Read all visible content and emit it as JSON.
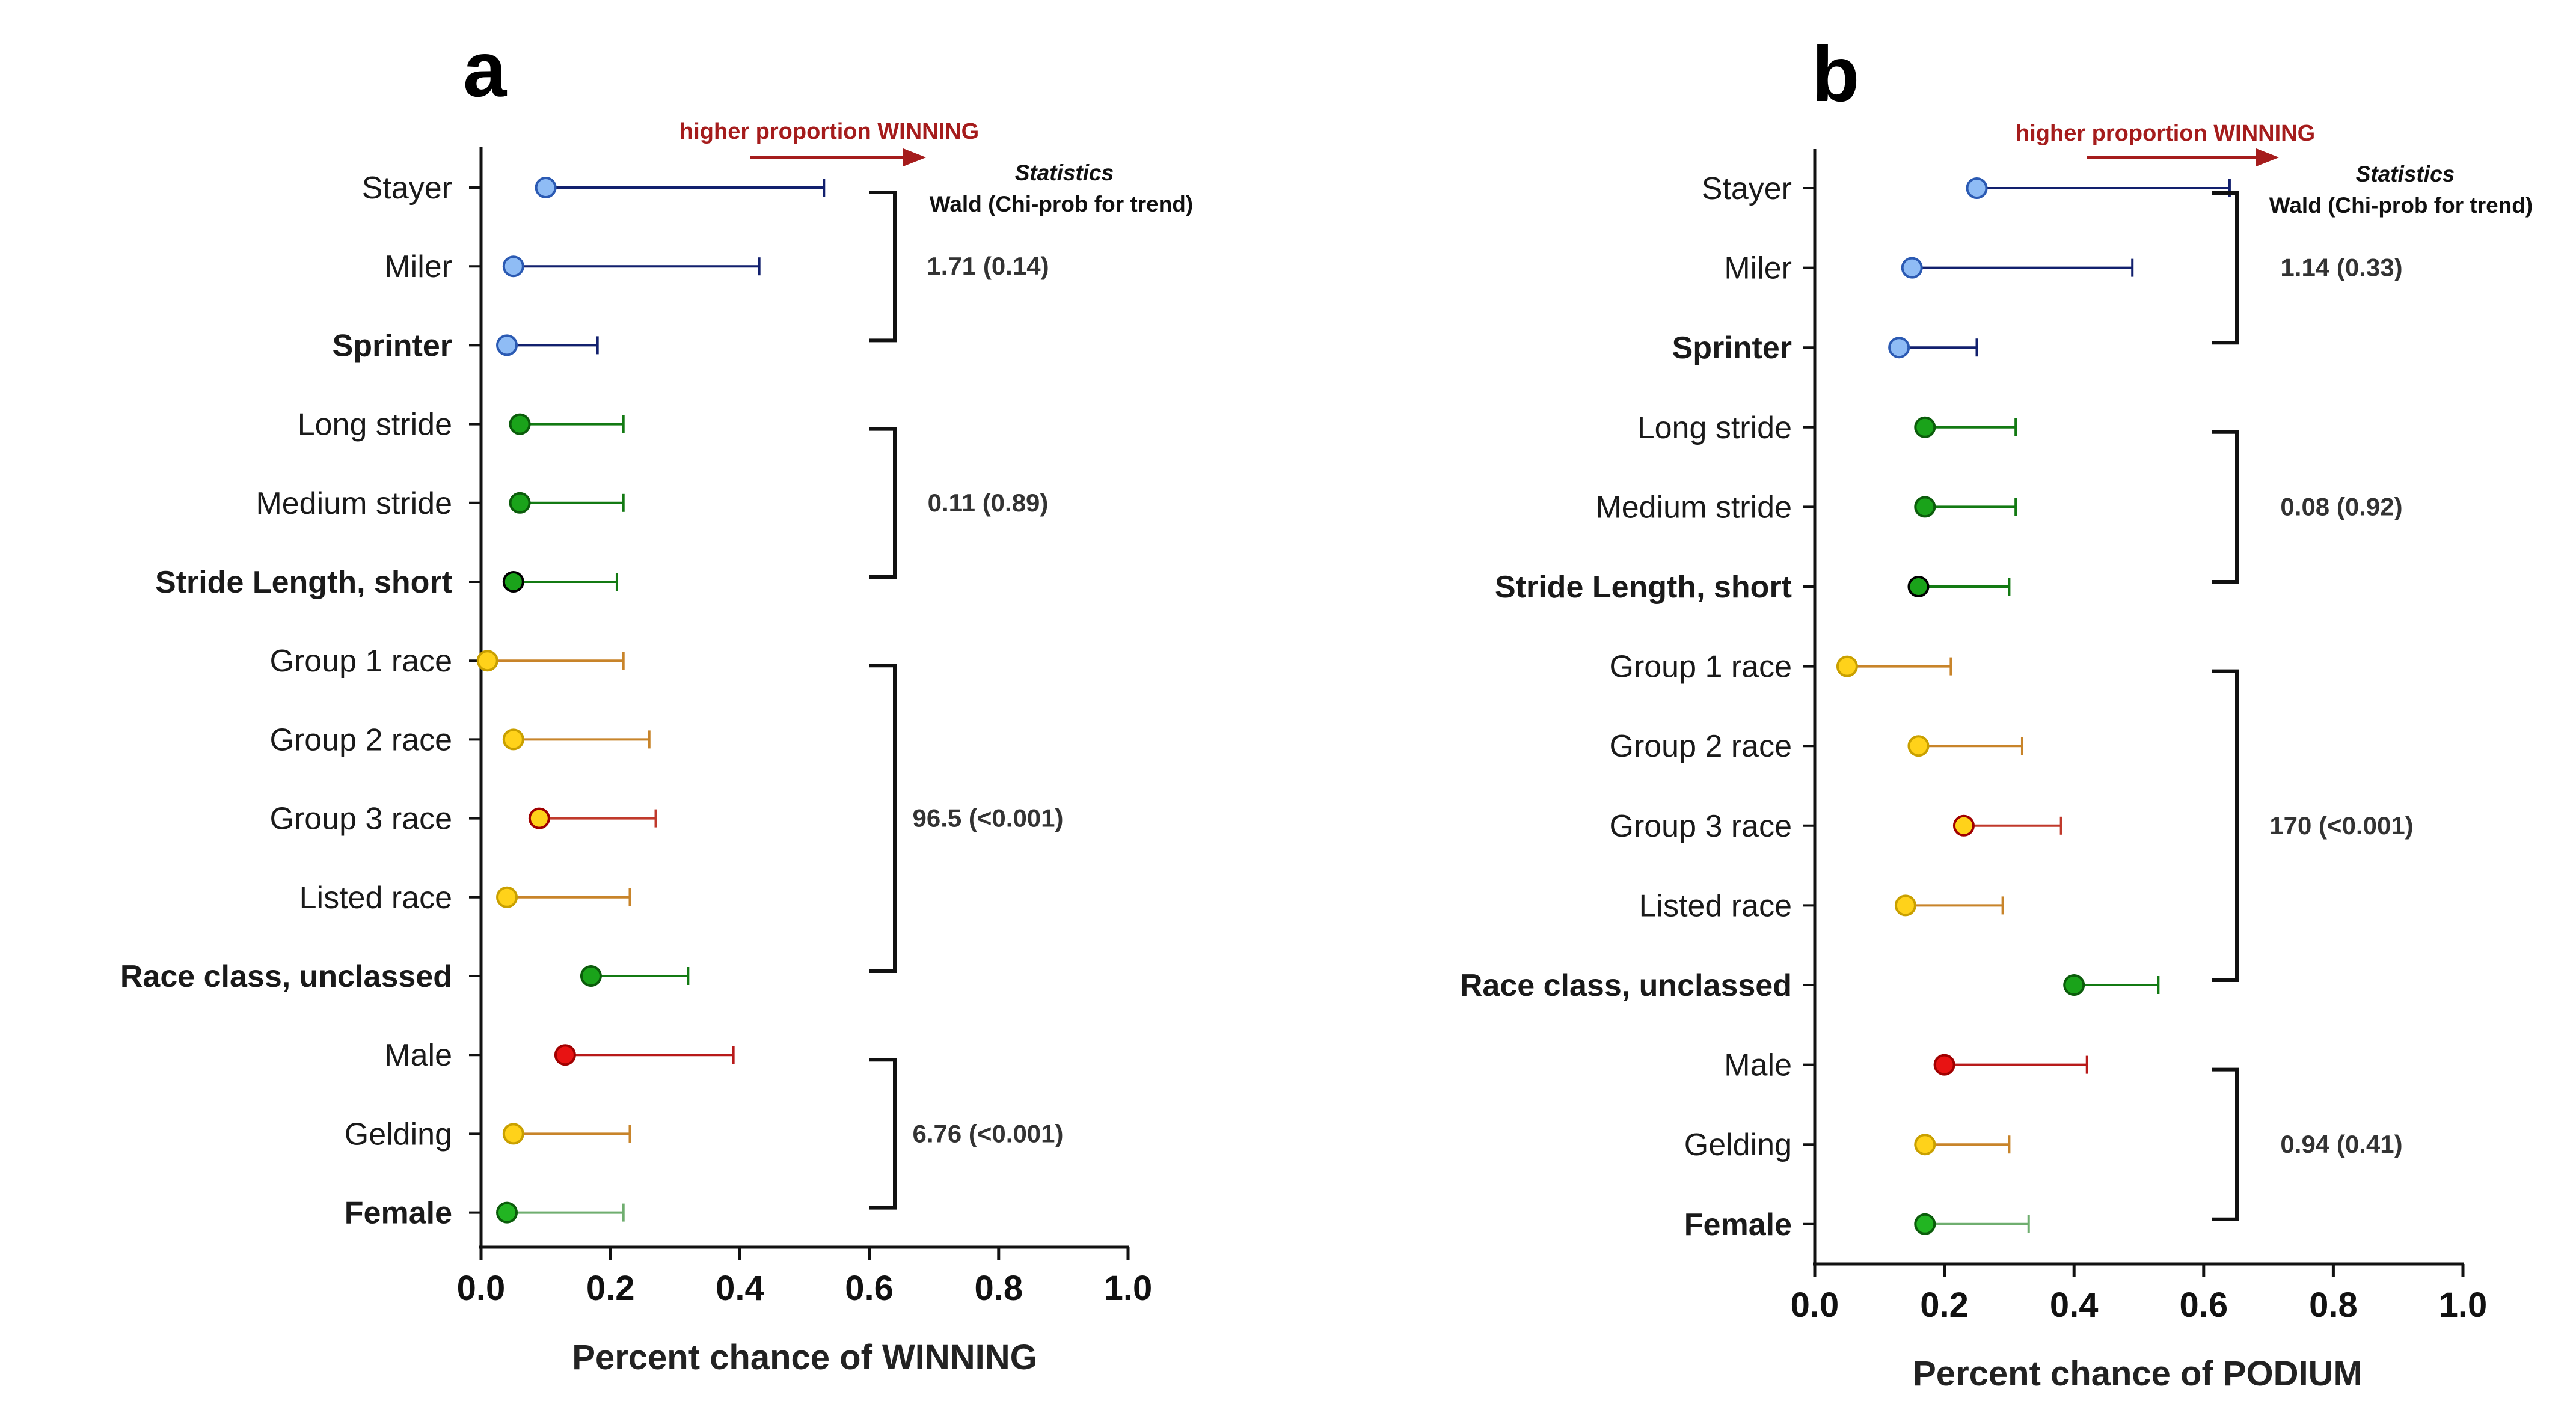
{
  "colors": {
    "blue_fill": "#8fbcf5",
    "blue_stroke": "#2b5ab3",
    "blue_line": "#12206e",
    "green_fill": "#1aa31a",
    "green_stroke": "#0b5c0b",
    "green_line": "#137a13",
    "female_fill": "#22b522",
    "female_line": "#6fae6f",
    "yellow_fill": "#ffd21a",
    "yellow_stroke": "#c9a000",
    "orange_line": "#c8842a",
    "group3_line": "#c0392b",
    "red_fill": "#e81313",
    "red_stroke": "#a00000",
    "red_line": "#b81a1a",
    "arrow": "#a51c1c"
  },
  "chart_data": [
    {
      "type": "scatter",
      "panel_label": "a",
      "xlabel": "Percent chance of WINNING",
      "xlim": [
        0,
        1.0
      ],
      "xticks": [
        "0.0",
        "0.2",
        "0.4",
        "0.6",
        "0.8",
        "1.0"
      ],
      "arrow_label": "higher proportion WINNING",
      "stats_header": "Statistics",
      "stats_subheader": "Wald (Chi-prob for trend)",
      "categories": [
        {
          "label": "Stayer",
          "bold": false,
          "value": 0.1,
          "upper": 0.53,
          "fill": "blue_fill",
          "stroke": "blue_stroke",
          "line": "blue_line"
        },
        {
          "label": "Miler",
          "bold": false,
          "value": 0.05,
          "upper": 0.43,
          "fill": "blue_fill",
          "stroke": "blue_stroke",
          "line": "blue_line"
        },
        {
          "label": "Sprinter",
          "bold": true,
          "value": 0.04,
          "upper": 0.18,
          "fill": "blue_fill",
          "stroke": "blue_stroke",
          "line": "blue_line"
        },
        {
          "label": "Long stride",
          "bold": false,
          "value": 0.06,
          "upper": 0.22,
          "fill": "green_fill",
          "stroke": "green_stroke",
          "line": "green_line"
        },
        {
          "label": "Medium stride",
          "bold": false,
          "value": 0.06,
          "upper": 0.22,
          "fill": "green_fill",
          "stroke": "green_stroke",
          "line": "green_line"
        },
        {
          "label": "Stride Length, short",
          "bold": true,
          "value": 0.05,
          "upper": 0.21,
          "fill": "green_fill",
          "stroke": "#000000",
          "line": "green_line"
        },
        {
          "label": "Group 1 race",
          "bold": false,
          "value": 0.01,
          "upper": 0.22,
          "fill": "yellow_fill",
          "stroke": "yellow_stroke",
          "line": "orange_line"
        },
        {
          "label": "Group 2 race",
          "bold": false,
          "value": 0.05,
          "upper": 0.26,
          "fill": "yellow_fill",
          "stroke": "yellow_stroke",
          "line": "orange_line"
        },
        {
          "label": "Group 3 race",
          "bold": false,
          "value": 0.09,
          "upper": 0.27,
          "fill": "yellow_fill",
          "stroke": "red_stroke",
          "line": "group3_line"
        },
        {
          "label": "Listed race",
          "bold": false,
          "value": 0.04,
          "upper": 0.23,
          "fill": "yellow_fill",
          "stroke": "yellow_stroke",
          "line": "orange_line"
        },
        {
          "label": "Race class, unclassed",
          "bold": true,
          "value": 0.17,
          "upper": 0.32,
          "fill": "green_fill",
          "stroke": "green_stroke",
          "line": "green_line"
        },
        {
          "label": "Male",
          "bold": false,
          "value": 0.13,
          "upper": 0.39,
          "fill": "red_fill",
          "stroke": "red_stroke",
          "line": "red_line"
        },
        {
          "label": "Gelding",
          "bold": false,
          "value": 0.05,
          "upper": 0.23,
          "fill": "yellow_fill",
          "stroke": "yellow_stroke",
          "line": "orange_line"
        },
        {
          "label": "Female",
          "bold": true,
          "value": 0.04,
          "upper": 0.22,
          "fill": "female_fill",
          "stroke": "green_stroke",
          "line": "female_line"
        }
      ],
      "groups": [
        {
          "from": 0,
          "to": 2,
          "stat": "1.71 (0.14)"
        },
        {
          "from": 3,
          "to": 5,
          "stat": "0.11 (0.89)"
        },
        {
          "from": 6,
          "to": 10,
          "stat": "96.5 (<0.001)"
        },
        {
          "from": 11,
          "to": 13,
          "stat": "6.76 (<0.001)"
        }
      ]
    },
    {
      "type": "scatter",
      "panel_label": "b",
      "xlabel": "Percent chance of PODIUM",
      "xlim": [
        0,
        1.0
      ],
      "xticks": [
        "0.0",
        "0.2",
        "0.4",
        "0.6",
        "0.8",
        "1.0"
      ],
      "arrow_label": "higher proportion WINNING",
      "stats_header": "Statistics",
      "stats_subheader": "Wald (Chi-prob for trend)",
      "categories": [
        {
          "label": "Stayer",
          "bold": false,
          "value": 0.25,
          "upper": 0.64,
          "fill": "blue_fill",
          "stroke": "blue_stroke",
          "line": "blue_line"
        },
        {
          "label": "Miler",
          "bold": false,
          "value": 0.15,
          "upper": 0.49,
          "fill": "blue_fill",
          "stroke": "blue_stroke",
          "line": "blue_line"
        },
        {
          "label": "Sprinter",
          "bold": true,
          "value": 0.13,
          "upper": 0.25,
          "fill": "blue_fill",
          "stroke": "blue_stroke",
          "line": "blue_line"
        },
        {
          "label": "Long stride",
          "bold": false,
          "value": 0.17,
          "upper": 0.31,
          "fill": "green_fill",
          "stroke": "green_stroke",
          "line": "green_line"
        },
        {
          "label": "Medium stride",
          "bold": false,
          "value": 0.17,
          "upper": 0.31,
          "fill": "green_fill",
          "stroke": "green_stroke",
          "line": "green_line"
        },
        {
          "label": "Stride Length, short",
          "bold": true,
          "value": 0.16,
          "upper": 0.3,
          "fill": "green_fill",
          "stroke": "#000000",
          "line": "green_line"
        },
        {
          "label": "Group 1 race",
          "bold": false,
          "value": 0.05,
          "upper": 0.21,
          "fill": "yellow_fill",
          "stroke": "yellow_stroke",
          "line": "orange_line"
        },
        {
          "label": "Group 2 race",
          "bold": false,
          "value": 0.16,
          "upper": 0.32,
          "fill": "yellow_fill",
          "stroke": "yellow_stroke",
          "line": "orange_line"
        },
        {
          "label": "Group 3 race",
          "bold": false,
          "value": 0.23,
          "upper": 0.38,
          "fill": "yellow_fill",
          "stroke": "red_stroke",
          "line": "group3_line"
        },
        {
          "label": "Listed race",
          "bold": false,
          "value": 0.14,
          "upper": 0.29,
          "fill": "yellow_fill",
          "stroke": "yellow_stroke",
          "line": "orange_line"
        },
        {
          "label": "Race class, unclassed",
          "bold": true,
          "value": 0.4,
          "upper": 0.53,
          "fill": "green_fill",
          "stroke": "green_stroke",
          "line": "green_line"
        },
        {
          "label": "Male",
          "bold": false,
          "value": 0.2,
          "upper": 0.42,
          "fill": "red_fill",
          "stroke": "red_stroke",
          "line": "red_line"
        },
        {
          "label": "Gelding",
          "bold": false,
          "value": 0.17,
          "upper": 0.3,
          "fill": "yellow_fill",
          "stroke": "yellow_stroke",
          "line": "orange_line"
        },
        {
          "label": "Female",
          "bold": true,
          "value": 0.17,
          "upper": 0.33,
          "fill": "female_fill",
          "stroke": "green_stroke",
          "line": "female_line"
        }
      ],
      "groups": [
        {
          "from": 0,
          "to": 2,
          "stat": "1.14 (0.33)"
        },
        {
          "from": 3,
          "to": 5,
          "stat": "0.08 (0.92)"
        },
        {
          "from": 6,
          "to": 10,
          "stat": "170 (<0.001)"
        },
        {
          "from": 11,
          "to": 13,
          "stat": "0.94 (0.41)"
        }
      ]
    }
  ]
}
